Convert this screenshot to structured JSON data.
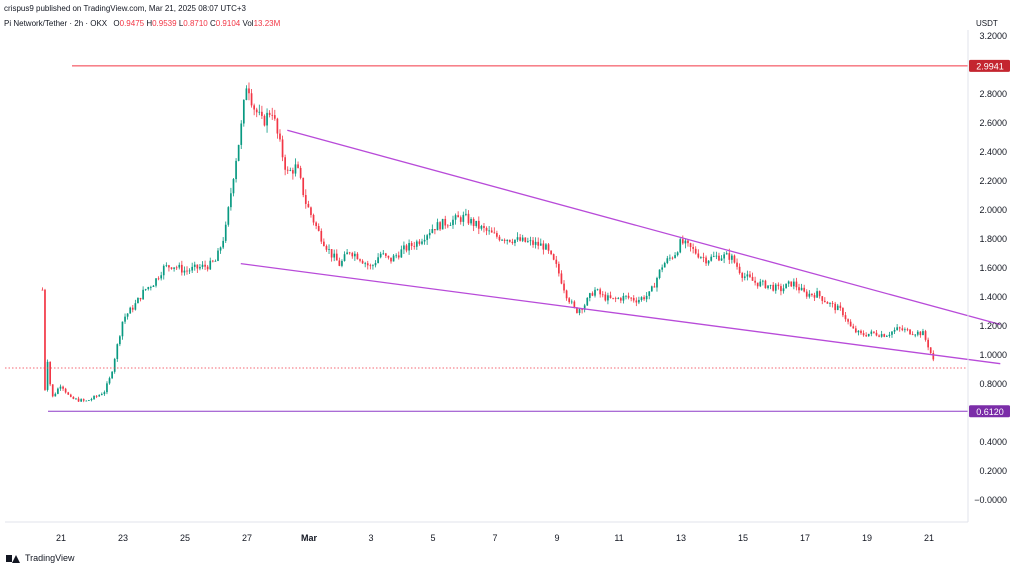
{
  "header": {
    "publisher": "crispus9 published on TradingView.com, Mar 21, 2025 08:07 UTC+3"
  },
  "legend": {
    "symbol": "Pi Network/Tether · 2h · OKX",
    "open_label": "O",
    "open": "0.9475",
    "high_label": "H",
    "high": "0.9539",
    "low_label": "L",
    "low": "0.8710",
    "close_label": "C",
    "close": "0.9104",
    "volume_label": "Vol",
    "volume": "13.23M"
  },
  "footer": {
    "brand": "TradingView"
  },
  "colors": {
    "up": "#089981",
    "down": "#f23645",
    "trend": "#b84bd9",
    "resistance": "#f23645",
    "support": "#8e3bc7",
    "resistance_badge": "#c4252f",
    "support_badge": "#7b2da8"
  },
  "chart_data": {
    "type": "candlestick",
    "unit": "USDT",
    "y_range": [
      -0.1,
      3.3
    ],
    "y_ticks": [
      "3.2000",
      "2.8000",
      "2.6000",
      "2.4000",
      "2.2000",
      "2.0000",
      "1.8000",
      "1.6000",
      "1.4000",
      "1.2000",
      "1.0000",
      "0.8000",
      "0.4000",
      "0.2000",
      "−0.0000"
    ],
    "y_tick_values": [
      3.2,
      2.8,
      2.6,
      2.4,
      2.2,
      2.0,
      1.8,
      1.6,
      1.4,
      1.2,
      1.0,
      0.8,
      0.4,
      0.2,
      0.0
    ],
    "x_ticks": [
      "21",
      "23",
      "25",
      "27",
      "Mar",
      "3",
      "5",
      "7",
      "9",
      "11",
      "13",
      "15",
      "17",
      "19",
      "21"
    ],
    "x_tick_days": [
      0,
      2,
      4,
      6,
      8,
      10,
      12,
      14,
      16,
      18,
      20,
      22,
      24,
      26,
      28
    ],
    "current_price": 0.9104,
    "horizontal_levels": [
      {
        "value": 2.9941,
        "label": "2.9941",
        "kind": "resistance"
      },
      {
        "value": 0.612,
        "label": "0.6120",
        "kind": "support"
      }
    ],
    "price_path": [
      [
        -0.6,
        1.45
      ],
      [
        -0.55,
        0.1
      ],
      [
        -0.5,
        1.1
      ],
      [
        -0.3,
        0.7
      ],
      [
        0,
        0.8
      ],
      [
        0.3,
        0.7
      ],
      [
        0.8,
        0.68
      ],
      [
        1.2,
        0.72
      ],
      [
        1.4,
        0.75
      ],
      [
        1.6,
        0.85
      ],
      [
        1.8,
        1.05
      ],
      [
        2.0,
        1.25
      ],
      [
        2.4,
        1.35
      ],
      [
        2.7,
        1.45
      ],
      [
        3.0,
        1.5
      ],
      [
        3.3,
        1.6
      ],
      [
        3.6,
        1.62
      ],
      [
        4.0,
        1.58
      ],
      [
        4.4,
        1.6
      ],
      [
        4.8,
        1.62
      ],
      [
        5.0,
        1.65
      ],
      [
        5.3,
        1.85
      ],
      [
        5.6,
        2.3
      ],
      [
        5.8,
        2.55
      ],
      [
        6.0,
        2.9
      ],
      [
        6.2,
        2.72
      ],
      [
        6.5,
        2.6
      ],
      [
        6.8,
        2.7
      ],
      [
        7.0,
        2.5
      ],
      [
        7.3,
        2.25
      ],
      [
        7.6,
        2.3
      ],
      [
        7.9,
        2.05
      ],
      [
        8.3,
        1.85
      ],
      [
        8.7,
        1.7
      ],
      [
        9.0,
        1.62
      ],
      [
        9.3,
        1.72
      ],
      [
        9.6,
        1.68
      ],
      [
        10.0,
        1.6
      ],
      [
        10.3,
        1.7
      ],
      [
        10.6,
        1.65
      ],
      [
        11.0,
        1.72
      ],
      [
        11.5,
        1.78
      ],
      [
        12.0,
        1.88
      ],
      [
        12.5,
        1.92
      ],
      [
        13.0,
        1.95
      ],
      [
        13.5,
        1.88
      ],
      [
        14.0,
        1.82
      ],
      [
        14.5,
        1.8
      ],
      [
        15.0,
        1.78
      ],
      [
        15.6,
        1.75
      ],
      [
        16.0,
        1.6
      ],
      [
        16.3,
        1.42
      ],
      [
        16.6,
        1.3
      ],
      [
        16.9,
        1.35
      ],
      [
        17.2,
        1.45
      ],
      [
        17.5,
        1.4
      ],
      [
        17.8,
        1.38
      ],
      [
        18.2,
        1.4
      ],
      [
        18.6,
        1.38
      ],
      [
        19.0,
        1.42
      ],
      [
        19.4,
        1.62
      ],
      [
        19.8,
        1.7
      ],
      [
        20.0,
        1.78
      ],
      [
        20.4,
        1.72
      ],
      [
        20.8,
        1.66
      ],
      [
        21.2,
        1.68
      ],
      [
        21.6,
        1.68
      ],
      [
        22.0,
        1.55
      ],
      [
        22.4,
        1.5
      ],
      [
        22.8,
        1.48
      ],
      [
        23.2,
        1.45
      ],
      [
        23.6,
        1.5
      ],
      [
        24.0,
        1.42
      ],
      [
        24.4,
        1.42
      ],
      [
        24.8,
        1.35
      ],
      [
        25.2,
        1.3
      ],
      [
        25.5,
        1.18
      ],
      [
        25.8,
        1.14
      ],
      [
        26.2,
        1.15
      ],
      [
        26.6,
        1.14
      ],
      [
        27.0,
        1.18
      ],
      [
        27.4,
        1.16
      ],
      [
        27.8,
        1.15
      ],
      [
        28.0,
        1.05
      ],
      [
        28.2,
        0.92
      ]
    ],
    "trendlines": [
      {
        "from": [
          7.3,
          2.55
        ],
        "to": [
          30.3,
          1.21
        ],
        "kind": "upper"
      },
      {
        "from": [
          5.8,
          1.63
        ],
        "to": [
          30.3,
          0.94
        ],
        "kind": "lower"
      }
    ]
  }
}
